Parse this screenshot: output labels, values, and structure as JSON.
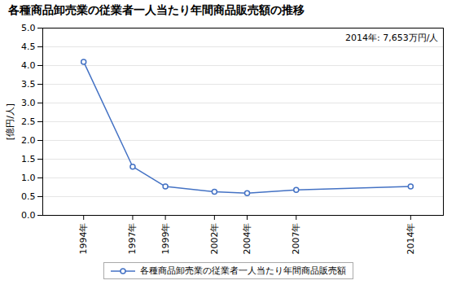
{
  "chart_data": {
    "type": "line",
    "title": "各種商品卸売業の従業者一人当たり年間商品販売額の推移",
    "ylabel": "[億円/人]",
    "annotation": "2014年: 7,653万円/人",
    "x": [
      1994,
      1997,
      1999,
      2002,
      2004,
      2007,
      2014
    ],
    "series": [
      {
        "name": "各種商品卸売業の従業者一人当たり年間商品販売額",
        "color": "#4472c4",
        "marker": "circle",
        "values": [
          4.1,
          1.3,
          0.77,
          0.63,
          0.59,
          0.68,
          0.77
        ]
      }
    ],
    "xlim": [
      1991.5,
      2016
    ],
    "xticks": [
      {
        "value": 1994,
        "label": "1994年"
      },
      {
        "value": 1997,
        "label": "1997年"
      },
      {
        "value": 1999,
        "label": "1999年"
      },
      {
        "value": 2002,
        "label": "2002年"
      },
      {
        "value": 2004,
        "label": "2004年"
      },
      {
        "value": 2007,
        "label": "2007年"
      },
      {
        "value": 2014,
        "label": "2014年"
      }
    ],
    "ylim": [
      0.0,
      5.0
    ],
    "yticks": [
      {
        "value": 0.0,
        "label": "0.0"
      },
      {
        "value": 0.5,
        "label": "0.5"
      },
      {
        "value": 1.0,
        "label": "1.0"
      },
      {
        "value": 1.5,
        "label": "1.5"
      },
      {
        "value": 2.0,
        "label": "2.0"
      },
      {
        "value": 2.5,
        "label": "2.5"
      },
      {
        "value": 3.0,
        "label": "3.0"
      },
      {
        "value": 3.5,
        "label": "3.5"
      },
      {
        "value": 4.0,
        "label": "4.0"
      },
      {
        "value": 4.5,
        "label": "4.5"
      },
      {
        "value": 5.0,
        "label": "5.0"
      }
    ],
    "grid": "y",
    "legend": "bottom"
  }
}
